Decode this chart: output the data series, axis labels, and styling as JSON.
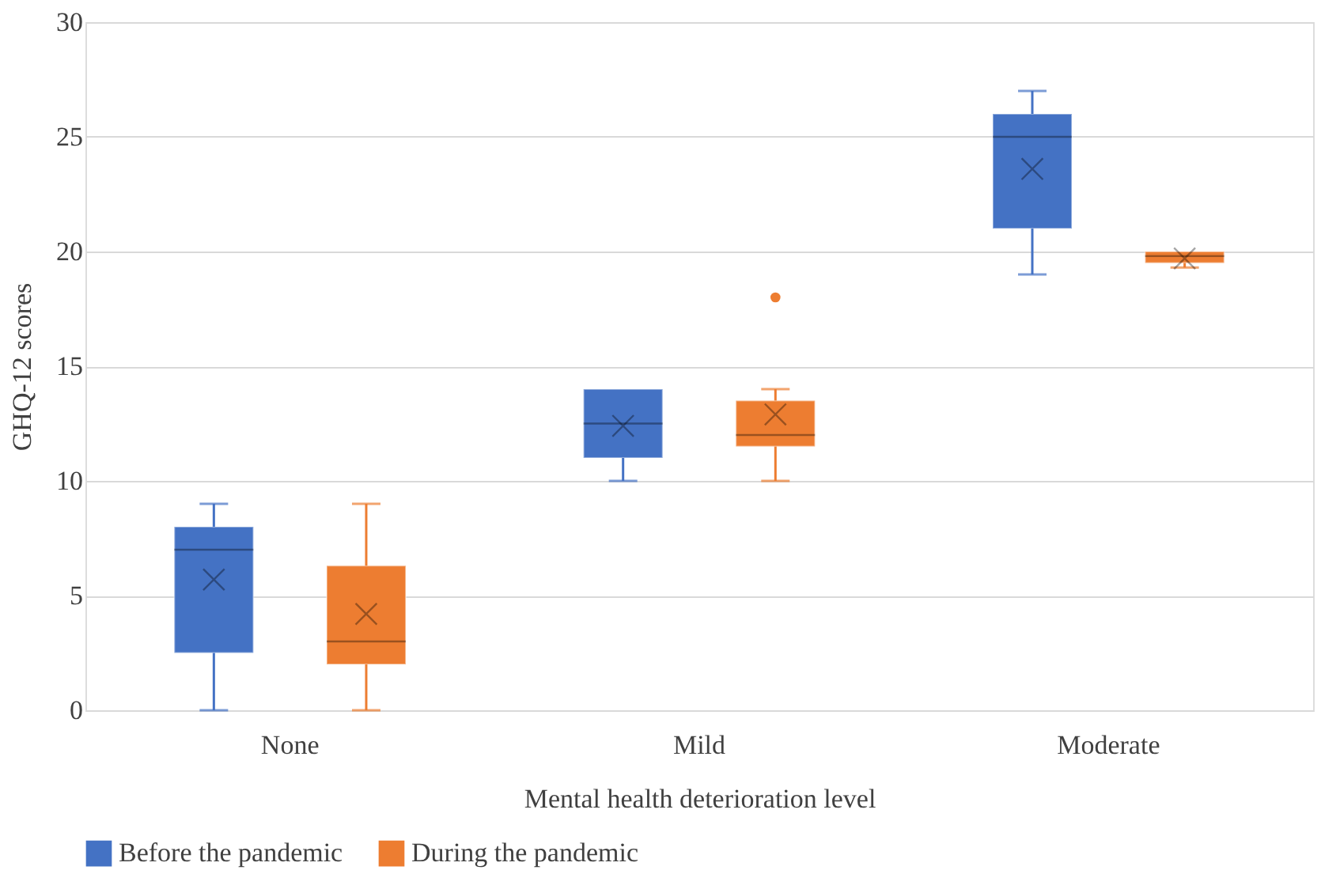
{
  "chart_data": {
    "type": "box",
    "xlabel": "Mental health deterioration level",
    "ylabel": "GHQ-12 scores",
    "categories": [
      "None",
      "Mild",
      "Moderate"
    ],
    "ylim": [
      0,
      30
    ],
    "yticks": [
      0,
      5,
      10,
      15,
      20,
      25,
      30
    ],
    "grid": "y",
    "legend": "bottom",
    "series": [
      {
        "name": "Before the pandemic",
        "color": "#4472c4",
        "boxes": [
          {
            "low": 0,
            "q1": 2.5,
            "median": 7,
            "q3": 8,
            "high": 9,
            "mean": 5.7
          },
          {
            "low": 10,
            "q1": 11,
            "median": 12.5,
            "q3": 14,
            "high": 14,
            "mean": 12.4
          },
          {
            "low": 19,
            "q1": 21,
            "median": 25,
            "q3": 26,
            "high": 27,
            "mean": 23.6
          }
        ]
      },
      {
        "name": "During the pandemic",
        "color": "#ed7d31",
        "boxes": [
          {
            "low": 0,
            "q1": 2,
            "median": 3,
            "q3": 6.3,
            "high": 9,
            "mean": 4.2
          },
          {
            "low": 10,
            "q1": 11.5,
            "median": 12,
            "q3": 13.5,
            "high": 14,
            "mean": 12.9,
            "outliers": [
              18
            ]
          },
          {
            "low": 19.3,
            "q1": 19.5,
            "median": 19.8,
            "q3": 20,
            "high": 20,
            "mean": 19.7
          }
        ]
      }
    ]
  }
}
